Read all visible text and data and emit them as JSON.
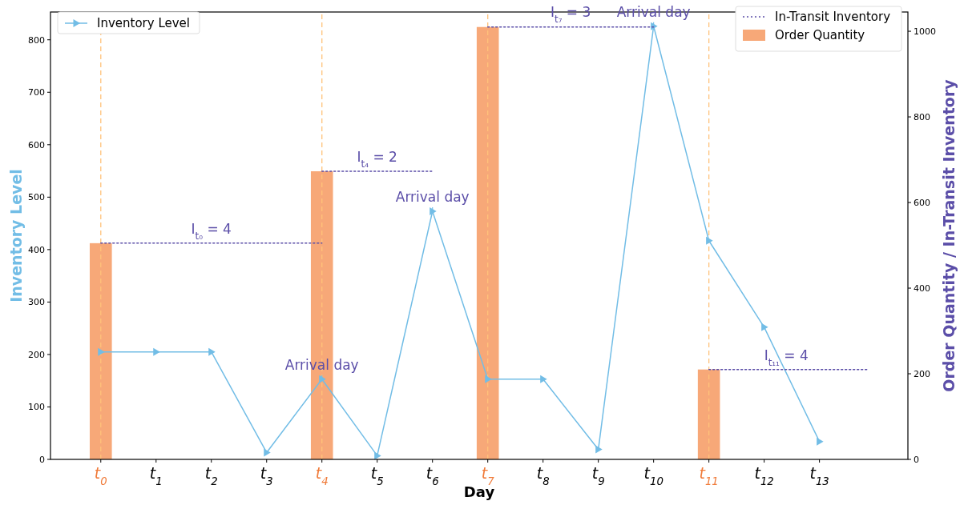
{
  "chart_data": {
    "type": "line",
    "xlabel": "Day",
    "ylabel": "Inventory Level",
    "y2label": "Order Quantity / In-Transit Inventory",
    "x": [
      0,
      1,
      2,
      3,
      4,
      5,
      6,
      7,
      8,
      9,
      10,
      11,
      12,
      13
    ],
    "xlim": [
      -0.91,
      14.6
    ],
    "xticks": [
      {
        "value": 0,
        "label": "t$_{0}$"
      },
      {
        "value": 1,
        "label": "t$_{1}$"
      },
      {
        "value": 2,
        "label": "t$_{2}$"
      },
      {
        "value": 3,
        "label": "t$_{3}$"
      },
      {
        "value": 4,
        "label": "t$_{4}$"
      },
      {
        "value": 5,
        "label": "t$_{5}$"
      },
      {
        "value": 6,
        "label": "t$_{6}$"
      },
      {
        "value": 7,
        "label": "t$_{7}$"
      },
      {
        "value": 8,
        "label": "t$_{8}$"
      },
      {
        "value": 9,
        "label": "t$_{9}$"
      },
      {
        "value": 10,
        "label": "t$_{10}$"
      },
      {
        "value": 11,
        "label": "t$_{11}$"
      },
      {
        "value": 12,
        "label": "t$_{12}$"
      },
      {
        "value": 13,
        "label": "t$_{13}$"
      }
    ],
    "ylim": [
      0,
      853
    ],
    "yticks": [
      0,
      100,
      200,
      300,
      400,
      500,
      600,
      700,
      800
    ],
    "y2lim": [
      0,
      1045
    ],
    "y2ticks": [
      0,
      200,
      400,
      600,
      800,
      1000
    ],
    "series": [
      {
        "name": "Inventory Level",
        "color": "#72bde6",
        "marker": "triangle",
        "values": [
          205,
          205,
          205,
          13,
          153,
          7,
          473,
          153,
          153,
          19,
          826,
          417,
          252,
          34
        ]
      },
      {
        "name": "In-Transit Inventory",
        "axis": "y2",
        "color": "#5b4ea8",
        "line_style": "dotted",
        "marker": "none",
        "x": [
          0,
          4
        ],
        "values": [
          505,
          505
        ]
      },
      {
        "axis": "y2",
        "color": "#5b4ea8",
        "line_style": "dotted",
        "marker": "none",
        "x": [
          4,
          6
        ],
        "values": [
          673,
          673
        ]
      },
      {
        "axis": "y2",
        "color": "#5b4ea8",
        "line_style": "dotted",
        "marker": "none",
        "x": [
          7,
          10
        ],
        "values": [
          1010,
          1010
        ]
      },
      {
        "axis": "y2",
        "color": "#5b4ea8",
        "line_style": "dotted",
        "marker": "none",
        "x": [
          11,
          13.87
        ],
        "values": [
          210,
          210
        ]
      },
      {
        "name": "Order Quantity",
        "type": "bar",
        "axis": "y2",
        "color": "#f7a878",
        "x": [
          0,
          4,
          7,
          11
        ],
        "values": [
          505,
          673,
          1010,
          210
        ]
      }
    ],
    "ref_lines": [
      {
        "axis": "x",
        "value": 0,
        "color": "#ffc27a",
        "line_style": "dashed"
      },
      {
        "axis": "x",
        "value": 4,
        "color": "#ffc27a",
        "line_style": "dashed"
      },
      {
        "axis": "x",
        "value": 7,
        "color": "#ffc27a",
        "line_style": "dashed"
      },
      {
        "axis": "x",
        "value": 11,
        "color": "#ffc27a",
        "line_style": "dashed"
      }
    ],
    "annotations": [
      {
        "text": "I$_{t₀}$ = 4",
        "x": 2,
        "y": 412
      },
      {
        "text": "I$_{t₄}$ = 2",
        "x": 5,
        "y": 550
      },
      {
        "text": "I$_{t₇}$ = 3",
        "x": 8.5,
        "y": 826
      },
      {
        "text": "I$_{t₁₁}$ = 4",
        "x": 12.4,
        "y": 171
      },
      {
        "text": "Arrival day",
        "x": 4,
        "y": 153
      },
      {
        "text": "Arrival day",
        "x": 6,
        "y": 473
      },
      {
        "text": "Arrival day",
        "x": 10,
        "y": 826
      }
    ],
    "legend": "top left"
  }
}
